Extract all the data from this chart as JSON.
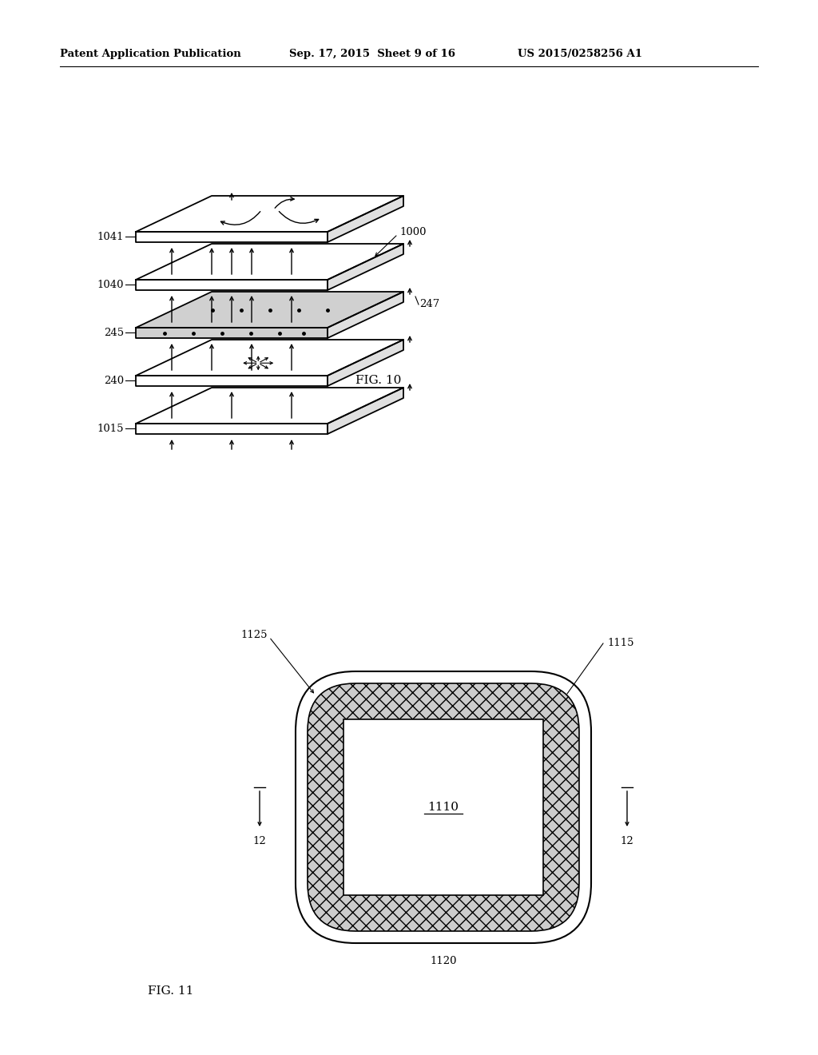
{
  "header_left": "Patent Application Publication",
  "header_mid": "Sep. 17, 2015  Sheet 9 of 16",
  "header_right": "US 2015/0258256 A1",
  "fig10_label": "FIG. 10",
  "fig11_label": "FIG. 11",
  "ref_1000": "1000",
  "ref_1041": "1041",
  "ref_1040": "1040",
  "ref_245": "245",
  "ref_247": "247",
  "ref_240": "240",
  "ref_1015": "1015",
  "ref_1125": "1125",
  "ref_1115": "1115",
  "ref_1110": "1110",
  "ref_1120": "1120",
  "ref_12": "12",
  "bg_color": "#ffffff",
  "line_color": "#000000"
}
